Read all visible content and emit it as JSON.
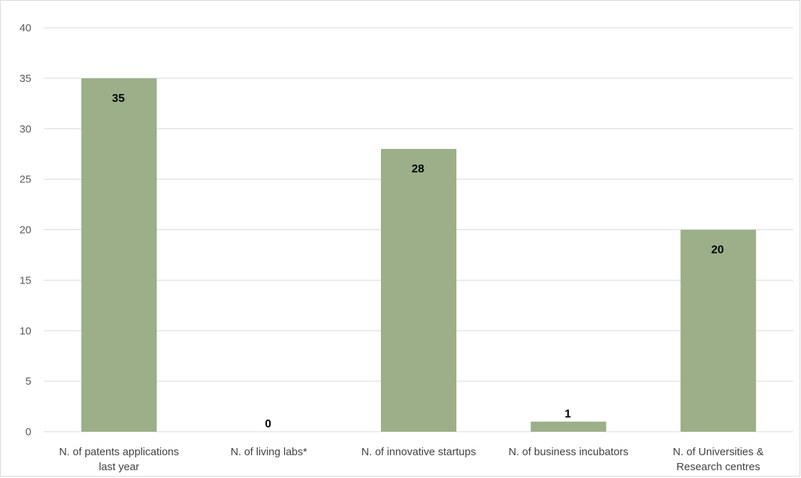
{
  "chart_data": {
    "type": "bar",
    "categories": [
      [
        "N. of patents applications",
        "last year"
      ],
      [
        "N. of living labs*"
      ],
      [
        "N. of innovative startups"
      ],
      [
        "N. of business incubators"
      ],
      [
        "N. of Universities &",
        "Research centres"
      ]
    ],
    "values": [
      35,
      0,
      28,
      1,
      20
    ],
    "data_labels": [
      "35",
      "0",
      "28",
      "1",
      "20"
    ],
    "y_ticks": [
      "0",
      "5",
      "10",
      "15",
      "20",
      "25",
      "30",
      "35",
      "40"
    ],
    "ylim": [
      0,
      40
    ],
    "grid": true,
    "legend": "none",
    "title": "",
    "xlabel": "",
    "ylabel": "",
    "colors": {
      "bar": "#9caf88",
      "grid": "#d9d9d9",
      "axis": "#d9d9d9",
      "tick_text": "#595959",
      "category_text": "#404040",
      "data_label": "#000000"
    }
  }
}
